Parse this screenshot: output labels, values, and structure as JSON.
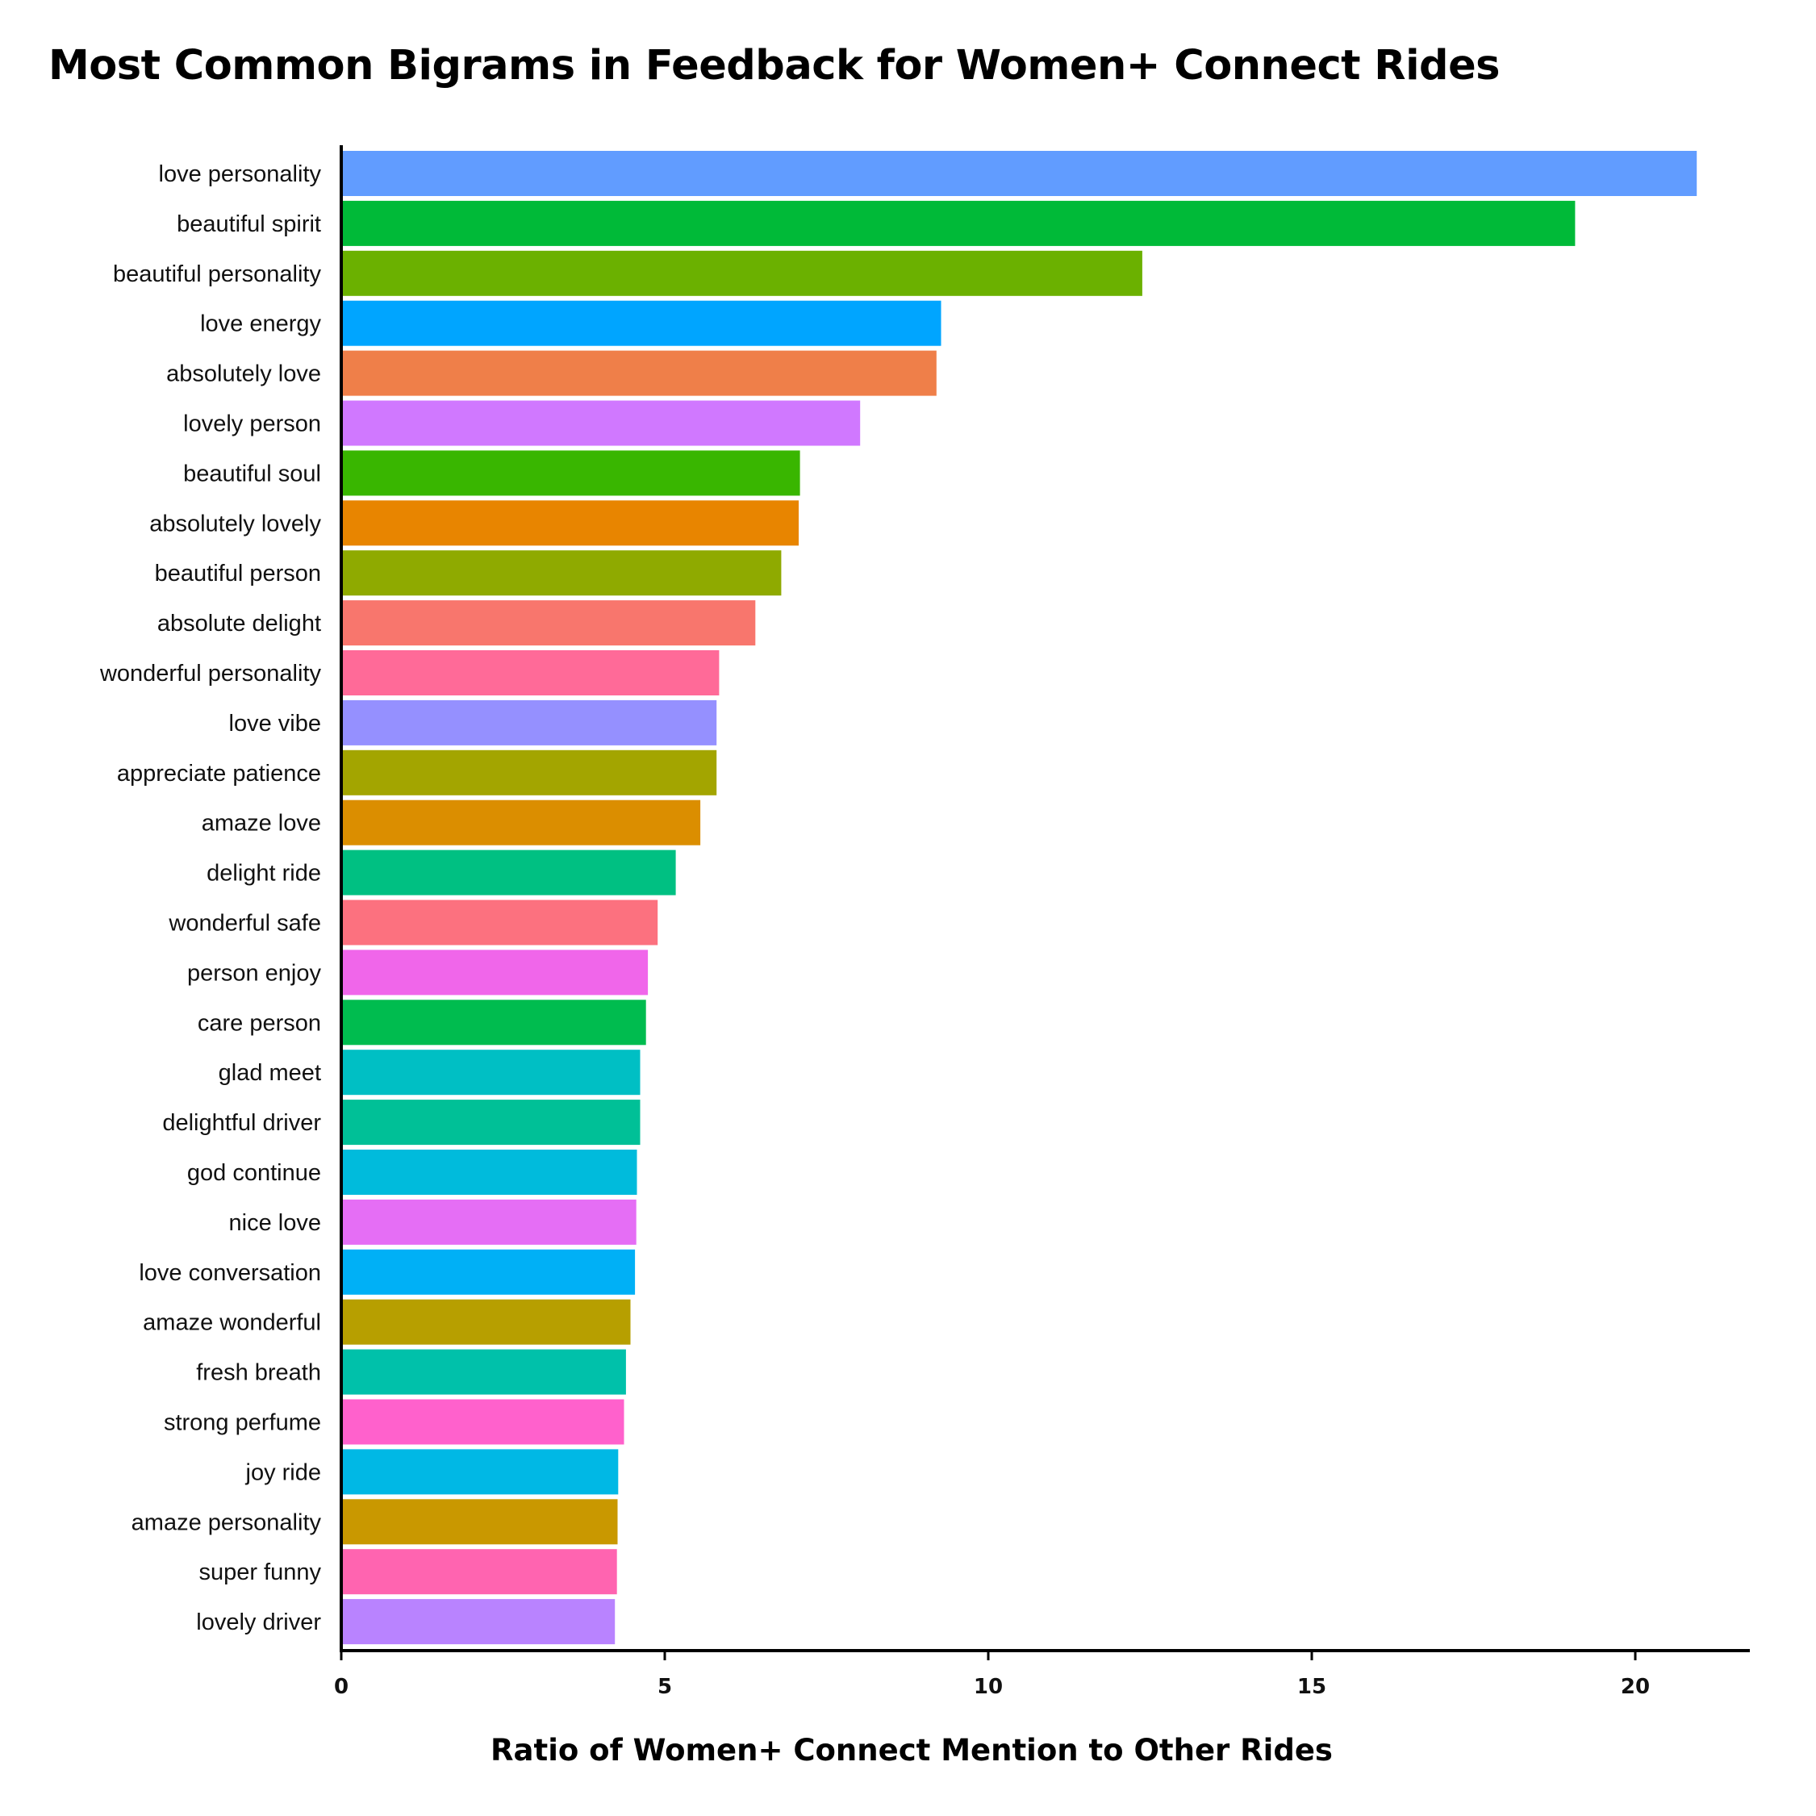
{
  "chart_data": {
    "type": "bar",
    "orientation": "horizontal",
    "title": "Most Common Bigrams in Feedback for Women+ Connect Rides",
    "xlabel": "Ratio of Women+ Connect Mention to Other Rides",
    "ylabel": "",
    "xlim": [
      0,
      21.8
    ],
    "xticks": [
      0,
      5,
      10,
      15,
      20
    ],
    "grid": false,
    "categories": [
      "love personality",
      "beautiful spirit",
      "beautiful personality",
      "love energy",
      "absolutely love",
      "lovely person",
      "beautiful soul",
      "absolutely lovely",
      "beautiful person",
      "absolute delight",
      "wonderful personality",
      "love vibe",
      "appreciate patience",
      "amaze love",
      "delight ride",
      "wonderful safe",
      "person enjoy",
      "care person",
      "glad meet",
      "delightful driver",
      "god continue",
      "nice love",
      "love conversation",
      "amaze wonderful",
      "fresh breath",
      "strong perfume",
      "joy ride",
      "amaze personality",
      "super funny",
      "lovely driver"
    ],
    "values": [
      20.95,
      19.07,
      12.38,
      9.27,
      9.2,
      8.02,
      7.09,
      7.07,
      6.8,
      6.4,
      5.84,
      5.8,
      5.8,
      5.55,
      5.17,
      4.89,
      4.74,
      4.71,
      4.62,
      4.62,
      4.57,
      4.56,
      4.54,
      4.47,
      4.4,
      4.37,
      4.28,
      4.27,
      4.26,
      4.23
    ],
    "colors": [
      "#619CFF",
      "#00BA38",
      "#6BB100",
      "#00A5FF",
      "#EF7F49",
      "#D078FF",
      "#39B600",
      "#E88500",
      "#8FAA00",
      "#F8766D",
      "#FF6A98",
      "#9590FF",
      "#A3A500",
      "#DB8E00",
      "#00C082",
      "#FC717F",
      "#F066EA",
      "#00BC4F",
      "#00BFC4",
      "#00C097",
      "#00BBDC",
      "#E56EF5",
      "#00B0F6",
      "#B79F00",
      "#00C1AA",
      "#FF61CC",
      "#00B8E5",
      "#C99800",
      "#FF64B0",
      "#B983FF"
    ]
  }
}
